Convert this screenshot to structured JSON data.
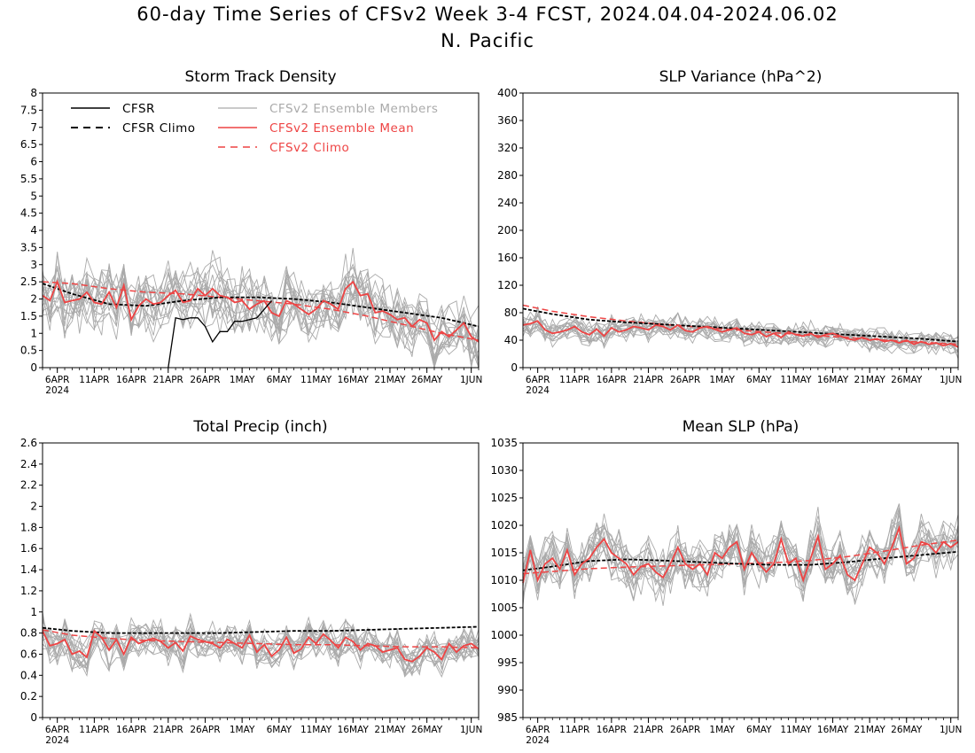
{
  "header": {
    "title": "60-day Time Series of CFSv2 Week 3-4 FCST, 2024.04.04-2024.06.02",
    "subtitle": "N. Pacific"
  },
  "colors": {
    "cfsr": "#000000",
    "cfsr_climo": "#000000",
    "ens_members": "#aaaaaa",
    "ens_mean": "#ee4444",
    "cfsv2_climo": "#ee4444"
  },
  "legend": {
    "cfsr": "CFSR",
    "cfsr_climo": "CFSR Climo",
    "ens_members": "CFSv2 Ensemble Members",
    "ens_mean": "CFSv2 Ensemble Mean",
    "cfsv2_climo": "CFSv2 Climo"
  },
  "chart_data": [
    {
      "type": "line",
      "title": "Storm Track Density",
      "xlabel": "",
      "ylabel": "",
      "x_range": [
        1,
        60
      ],
      "ylim": [
        0,
        8
      ],
      "yticks": [
        0,
        0.5,
        1,
        1.5,
        2,
        2.5,
        3,
        3.5,
        4,
        4.5,
        5,
        5.5,
        6,
        6.5,
        7,
        7.5,
        8
      ],
      "ytick_labels": [
        "0",
        "0.5",
        "1",
        "1.5",
        "2",
        "2.5",
        "3",
        "3.5",
        "4",
        "4.5",
        "5",
        "5.5",
        "6",
        "6.5",
        "7",
        "7.5",
        "8"
      ],
      "xticks": [
        3,
        8,
        13,
        18,
        23,
        28,
        33,
        38,
        43,
        48,
        53,
        59
      ],
      "xtick_labels": [
        "6APR",
        "11APR",
        "16APR",
        "21APR",
        "26APR",
        "1MAY",
        "6MAY",
        "11MAY",
        "16MAY",
        "21MAY",
        "26MAY",
        "1JUN"
      ],
      "xtick_year": "2024",
      "legend_location": "top-left",
      "members_amp": 0.9,
      "cfsr": {
        "x": [
          18,
          19,
          20,
          21,
          22,
          23,
          24,
          25,
          26,
          27,
          28,
          29,
          30,
          31,
          32
        ],
        "y": [
          0,
          1.45,
          1.4,
          1.45,
          1.45,
          1.2,
          0.75,
          1.05,
          1.05,
          1.35,
          1.35,
          1.4,
          1.45,
          1.7,
          1.95
        ]
      },
      "cfsr_climo": {
        "x": [
          1,
          5,
          10,
          15,
          20,
          25,
          30,
          35,
          40,
          45,
          50,
          55,
          60
        ],
        "y": [
          2.45,
          2.15,
          1.85,
          1.8,
          1.95,
          2.05,
          2.05,
          2.0,
          1.9,
          1.75,
          1.6,
          1.45,
          1.2
        ]
      },
      "cfsv2_climo": {
        "x": [
          1,
          5,
          10,
          15,
          20,
          25,
          30,
          35,
          40,
          45,
          50,
          55,
          60
        ],
        "y": [
          2.5,
          2.45,
          2.3,
          2.2,
          2.15,
          2.05,
          1.95,
          1.85,
          1.7,
          1.5,
          1.25,
          1.0,
          0.8
        ]
      },
      "ens_mean": {
        "x": [
          1,
          2,
          3,
          4,
          5,
          6,
          7,
          8,
          9,
          10,
          11,
          12,
          13,
          14,
          15,
          16,
          17,
          18,
          19,
          20,
          21,
          22,
          23,
          24,
          25,
          26,
          27,
          28,
          29,
          30,
          31,
          32,
          33,
          34,
          35,
          36,
          37,
          38,
          39,
          40,
          41,
          42,
          43,
          44,
          45,
          46,
          47,
          48,
          49,
          50,
          51,
          52,
          53,
          54,
          55,
          56,
          57,
          58,
          59,
          60
        ],
        "y": [
          2.1,
          1.95,
          2.5,
          1.9,
          1.95,
          2.0,
          2.2,
          1.9,
          1.85,
          2.2,
          1.75,
          2.4,
          1.4,
          1.8,
          2.0,
          1.85,
          1.9,
          2.1,
          2.25,
          1.9,
          1.95,
          2.3,
          2.1,
          2.3,
          2.1,
          2.05,
          1.9,
          1.95,
          1.7,
          1.85,
          1.95,
          1.6,
          1.5,
          1.95,
          1.85,
          1.7,
          1.55,
          1.7,
          1.95,
          1.85,
          1.7,
          2.3,
          2.5,
          2.1,
          2.15,
          1.6,
          1.65,
          1.55,
          1.4,
          1.45,
          1.2,
          1.4,
          1.3,
          0.8,
          1.05,
          0.9,
          1.1,
          1.3,
          0.9,
          0.75
        ]
      }
    },
    {
      "type": "line",
      "title": "SLP Variance (hPa^2)",
      "xlabel": "",
      "ylabel": "",
      "x_range": [
        1,
        60
      ],
      "ylim": [
        0,
        400
      ],
      "yticks": [
        0,
        40,
        80,
        120,
        160,
        200,
        240,
        280,
        320,
        360,
        400
      ],
      "ytick_labels": [
        "0",
        "40",
        "80",
        "120",
        "160",
        "200",
        "240",
        "280",
        "320",
        "360",
        "400"
      ],
      "xticks": [
        3,
        8,
        13,
        18,
        23,
        28,
        33,
        38,
        43,
        48,
        53,
        59
      ],
      "xtick_labels": [
        "6APR",
        "11APR",
        "16APR",
        "21APR",
        "26APR",
        "1MAY",
        "6MAY",
        "11MAY",
        "16MAY",
        "21MAY",
        "26MAY",
        "1JUN"
      ],
      "xtick_year": "2024",
      "members_amp": 17,
      "cfsr_climo": {
        "x": [
          1,
          5,
          10,
          15,
          20,
          25,
          30,
          35,
          40,
          45,
          50,
          55,
          60
        ],
        "y": [
          86,
          78,
          70,
          66,
          63,
          60,
          57,
          54,
          51,
          48,
          45,
          42,
          38
        ]
      },
      "cfsv2_climo": {
        "x": [
          1,
          5,
          10,
          15,
          20,
          25,
          30,
          35,
          40,
          45,
          50,
          55,
          60
        ],
        "y": [
          91,
          82,
          74,
          68,
          63,
          59,
          55,
          51,
          47,
          44,
          40,
          37,
          34
        ]
      },
      "ens_mean": {
        "x": [
          1,
          2,
          3,
          4,
          5,
          6,
          7,
          8,
          9,
          10,
          11,
          12,
          13,
          14,
          15,
          16,
          17,
          18,
          19,
          20,
          21,
          22,
          23,
          24,
          25,
          26,
          27,
          28,
          29,
          30,
          31,
          32,
          33,
          34,
          35,
          36,
          37,
          38,
          39,
          40,
          41,
          42,
          43,
          44,
          45,
          46,
          47,
          48,
          49,
          50,
          51,
          52,
          53,
          54,
          55,
          56,
          57,
          58,
          59,
          60
        ],
        "y": [
          62,
          64,
          68,
          55,
          50,
          52,
          55,
          60,
          52,
          48,
          56,
          46,
          58,
          52,
          55,
          60,
          58,
          55,
          62,
          60,
          55,
          62,
          54,
          52,
          58,
          60,
          56,
          52,
          55,
          58,
          50,
          48,
          52,
          45,
          50,
          44,
          52,
          48,
          46,
          50,
          44,
          48,
          50,
          46,
          42,
          40,
          44,
          40,
          42,
          38,
          40,
          36,
          40,
          34,
          38,
          34,
          36,
          32,
          35,
          30
        ]
      }
    },
    {
      "type": "line",
      "title": "Total Precip (inch)",
      "xlabel": "",
      "ylabel": "",
      "x_range": [
        1,
        60
      ],
      "ylim": [
        0,
        2.6
      ],
      "yticks": [
        0,
        0.2,
        0.4,
        0.6,
        0.8,
        1,
        1.2,
        1.4,
        1.6,
        1.8,
        2,
        2.2,
        2.4,
        2.6
      ],
      "ytick_labels": [
        "0",
        "0.2",
        "0.4",
        "0.6",
        "0.8",
        "1",
        "1.2",
        "1.4",
        "1.6",
        "1.8",
        "2",
        "2.2",
        "2.4",
        "2.6"
      ],
      "xticks": [
        3,
        8,
        13,
        18,
        23,
        28,
        33,
        38,
        43,
        48,
        53,
        59
      ],
      "xtick_labels": [
        "6APR",
        "11APR",
        "16APR",
        "21APR",
        "26APR",
        "1MAY",
        "6MAY",
        "11MAY",
        "16MAY",
        "21MAY",
        "26MAY",
        "1JUN"
      ],
      "xtick_year": "2024",
      "members_amp": 0.17,
      "cfsr_climo": {
        "x": [
          1,
          5,
          10,
          15,
          20,
          25,
          30,
          35,
          40,
          45,
          50,
          55,
          60
        ],
        "y": [
          0.85,
          0.82,
          0.8,
          0.8,
          0.8,
          0.8,
          0.81,
          0.82,
          0.82,
          0.83,
          0.84,
          0.85,
          0.86
        ]
      },
      "cfsv2_climo": {
        "x": [
          1,
          5,
          10,
          15,
          20,
          25,
          30,
          35,
          40,
          45,
          50,
          55,
          60
        ],
        "y": [
          0.83,
          0.78,
          0.75,
          0.73,
          0.72,
          0.71,
          0.7,
          0.69,
          0.69,
          0.68,
          0.67,
          0.67,
          0.66
        ]
      },
      "ens_mean": {
        "x": [
          1,
          2,
          3,
          4,
          5,
          6,
          7,
          8,
          9,
          10,
          11,
          12,
          13,
          14,
          15,
          16,
          17,
          18,
          19,
          20,
          21,
          22,
          23,
          24,
          25,
          26,
          27,
          28,
          29,
          30,
          31,
          32,
          33,
          34,
          35,
          36,
          37,
          38,
          39,
          40,
          41,
          42,
          43,
          44,
          45,
          46,
          47,
          48,
          49,
          50,
          51,
          52,
          53,
          54,
          55,
          56,
          57,
          58,
          59,
          60
        ],
        "y": [
          0.82,
          0.68,
          0.7,
          0.74,
          0.6,
          0.63,
          0.57,
          0.82,
          0.76,
          0.64,
          0.74,
          0.6,
          0.76,
          0.7,
          0.73,
          0.75,
          0.72,
          0.66,
          0.71,
          0.63,
          0.77,
          0.74,
          0.72,
          0.7,
          0.66,
          0.74,
          0.7,
          0.66,
          0.78,
          0.62,
          0.69,
          0.58,
          0.64,
          0.76,
          0.61,
          0.65,
          0.76,
          0.7,
          0.79,
          0.73,
          0.66,
          0.76,
          0.72,
          0.64,
          0.7,
          0.68,
          0.62,
          0.64,
          0.66,
          0.55,
          0.53,
          0.58,
          0.66,
          0.62,
          0.55,
          0.7,
          0.62,
          0.68,
          0.7,
          0.65
        ]
      }
    },
    {
      "type": "line",
      "title": "Mean SLP (hPa)",
      "xlabel": "",
      "ylabel": "",
      "x_range": [
        1,
        60
      ],
      "ylim": [
        985,
        1035
      ],
      "yticks": [
        985,
        990,
        995,
        1000,
        1005,
        1010,
        1015,
        1020,
        1025,
        1030,
        1035
      ],
      "ytick_labels": [
        "985",
        "990",
        "995",
        "1000",
        "1005",
        "1010",
        "1015",
        "1020",
        "1025",
        "1030",
        "1035"
      ],
      "xticks": [
        3,
        8,
        13,
        18,
        23,
        28,
        33,
        38,
        43,
        48,
        53,
        59
      ],
      "xtick_labels": [
        "6APR",
        "11APR",
        "16APR",
        "21APR",
        "26APR",
        "1MAY",
        "6MAY",
        "11MAY",
        "16MAY",
        "21MAY",
        "26MAY",
        "1JUN"
      ],
      "xtick_year": "2024",
      "members_amp": 4.5,
      "cfsr_climo": {
        "x": [
          1,
          5,
          10,
          15,
          20,
          25,
          30,
          35,
          40,
          45,
          50,
          55,
          60
        ],
        "y": [
          1011.8,
          1012.5,
          1013.5,
          1013.8,
          1013.6,
          1013.3,
          1013.0,
          1012.8,
          1012.8,
          1013.3,
          1014.0,
          1014.6,
          1015.2
        ]
      },
      "cfsv2_climo": {
        "x": [
          1,
          5,
          10,
          15,
          20,
          25,
          30,
          35,
          40,
          45,
          50,
          55,
          60
        ],
        "y": [
          1011.2,
          1011.6,
          1012.1,
          1012.4,
          1012.6,
          1012.8,
          1013.0,
          1013.2,
          1013.6,
          1014.3,
          1015.3,
          1016.4,
          1017.3
        ]
      },
      "ens_mean": {
        "x": [
          1,
          2,
          3,
          4,
          5,
          6,
          7,
          8,
          9,
          10,
          11,
          12,
          13,
          14,
          15,
          16,
          17,
          18,
          19,
          20,
          21,
          22,
          23,
          24,
          25,
          26,
          27,
          28,
          29,
          30,
          31,
          32,
          33,
          34,
          35,
          36,
          37,
          38,
          39,
          40,
          41,
          42,
          43,
          44,
          45,
          46,
          47,
          48,
          49,
          50,
          51,
          52,
          53,
          54,
          55,
          56,
          57,
          58,
          59,
          60
        ],
        "y": [
          1009.5,
          1015.5,
          1010.0,
          1013.0,
          1014.0,
          1012.0,
          1015.5,
          1011.0,
          1013.0,
          1014.0,
          1016.0,
          1017.5,
          1015.0,
          1014.0,
          1013.0,
          1011.0,
          1012.5,
          1013.0,
          1011.5,
          1010.5,
          1013.0,
          1016.0,
          1013.0,
          1012.0,
          1013.0,
          1011.0,
          1015.0,
          1014.0,
          1016.0,
          1017.0,
          1012.0,
          1015.0,
          1013.0,
          1011.5,
          1013.0,
          1017.5,
          1013.0,
          1014.0,
          1010.0,
          1014.0,
          1018.0,
          1012.0,
          1013.0,
          1014.5,
          1011.0,
          1010.0,
          1013.0,
          1016.0,
          1015.0,
          1013.0,
          1016.0,
          1019.5,
          1013.0,
          1014.0,
          1017.0,
          1016.5,
          1015.0,
          1017.0,
          1016.0,
          1017.0
        ]
      }
    }
  ]
}
